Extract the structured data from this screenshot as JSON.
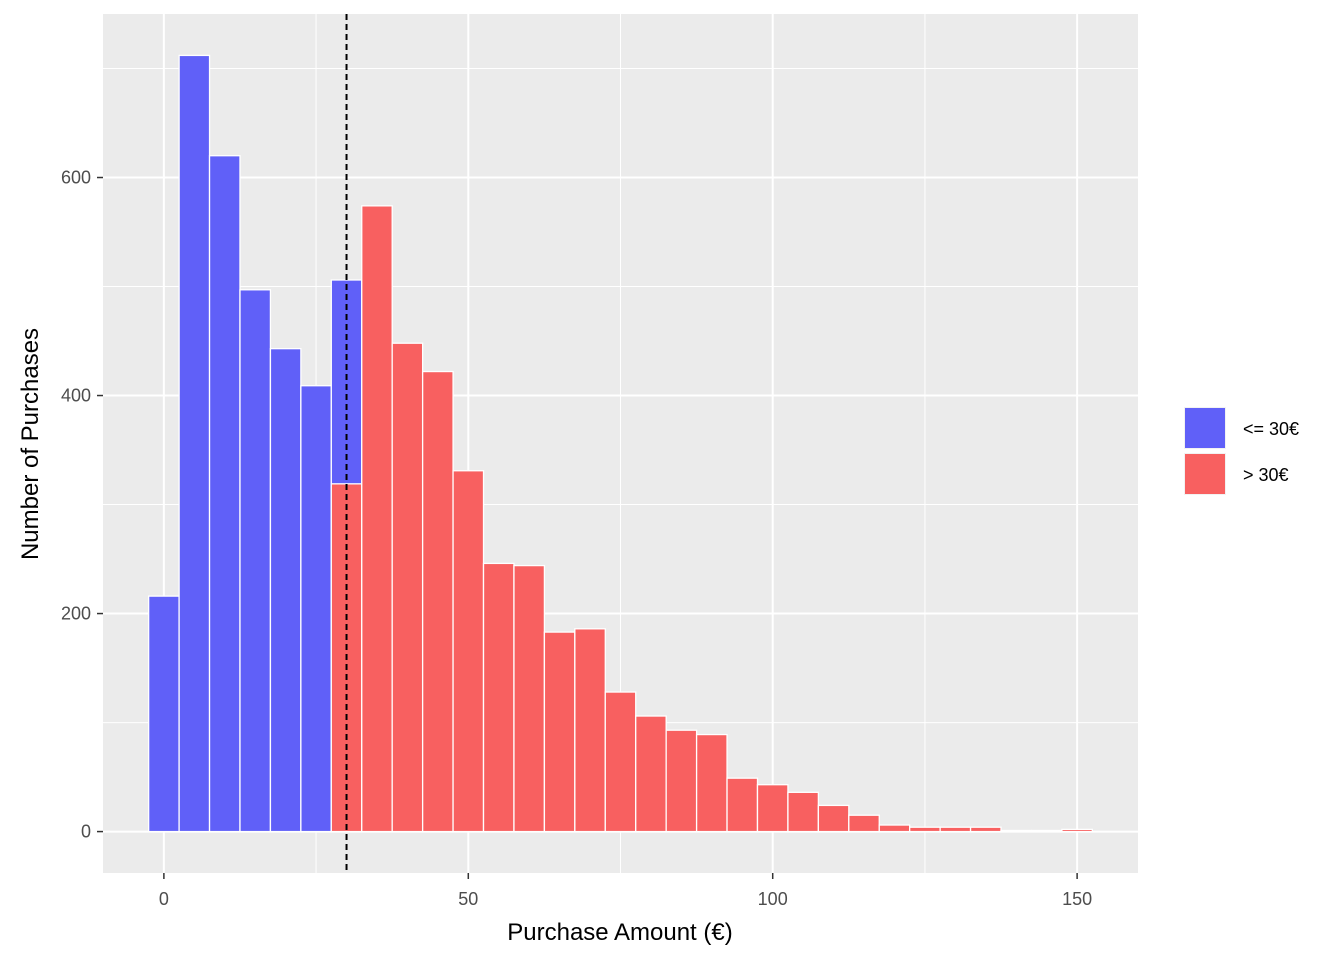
{
  "chart_data": {
    "type": "bar",
    "title": "",
    "xlabel": "Purchase Amount (€)",
    "ylabel": "Number of Purchases",
    "xlim": [
      -10,
      160
    ],
    "ylim": [
      -38,
      750
    ],
    "x_ticks": [
      0,
      50,
      100,
      150
    ],
    "y_ticks": [
      0,
      200,
      400,
      600
    ],
    "x_tick_labels": [
      "0",
      "50",
      "100",
      "150"
    ],
    "y_tick_labels": [
      "0",
      "200",
      "400",
      "600"
    ],
    "bin_width": 5,
    "threshold_line": {
      "x": 30,
      "style": "dashed",
      "color": "#000000"
    },
    "grid": true,
    "legend_position": "right",
    "series": [
      {
        "name": "<= 30€",
        "color": "#6060F8",
        "bars": [
          {
            "x": 0,
            "count": 216
          },
          {
            "x": 5,
            "count": 712
          },
          {
            "x": 10,
            "count": 620
          },
          {
            "x": 15,
            "count": 497
          },
          {
            "x": 20,
            "count": 443
          },
          {
            "x": 25,
            "count": 409
          },
          {
            "x": 30,
            "count": 506
          }
        ]
      },
      {
        "name": "> 30€",
        "color": "#F86060",
        "bars": [
          {
            "x": 30,
            "count": 319
          },
          {
            "x": 35,
            "count": 574
          },
          {
            "x": 40,
            "count": 448
          },
          {
            "x": 45,
            "count": 422
          },
          {
            "x": 50,
            "count": 331
          },
          {
            "x": 55,
            "count": 246
          },
          {
            "x": 60,
            "count": 244
          },
          {
            "x": 65,
            "count": 183
          },
          {
            "x": 70,
            "count": 186
          },
          {
            "x": 75,
            "count": 128
          },
          {
            "x": 80,
            "count": 106
          },
          {
            "x": 85,
            "count": 93
          },
          {
            "x": 90,
            "count": 89
          },
          {
            "x": 95,
            "count": 49
          },
          {
            "x": 100,
            "count": 43
          },
          {
            "x": 105,
            "count": 36
          },
          {
            "x": 110,
            "count": 24
          },
          {
            "x": 115,
            "count": 15
          },
          {
            "x": 120,
            "count": 6
          },
          {
            "x": 125,
            "count": 4
          },
          {
            "x": 130,
            "count": 4
          },
          {
            "x": 135,
            "count": 4
          },
          {
            "x": 140,
            "count": 1
          },
          {
            "x": 145,
            "count": 1
          },
          {
            "x": 150,
            "count": 2
          }
        ]
      }
    ]
  }
}
